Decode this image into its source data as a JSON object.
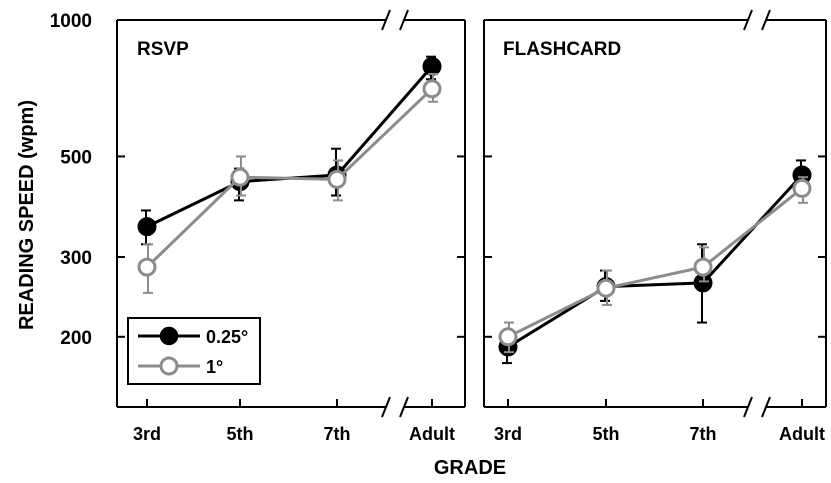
{
  "figure": {
    "ylabel": "READING SPEED (wpm)",
    "xlabel": "GRADE",
    "y_ticks": [
      200,
      300,
      500,
      1000
    ],
    "y_tick_labels": [
      "200",
      "300",
      "500",
      "1000"
    ],
    "y_scale": "log",
    "ylim": [
      140,
      1000
    ]
  },
  "legend": {
    "placement": "bottom-left of left panel",
    "entries": [
      {
        "label": "0.25°",
        "color": "#000000",
        "marker": "filled-circle"
      },
      {
        "label": "1°",
        "color": "#8c8c8c",
        "marker": "open-circle"
      }
    ]
  },
  "chart_data": [
    {
      "type": "line",
      "title": "RSVP",
      "categories": [
        "3rd",
        "5th",
        "7th",
        "Adult"
      ],
      "axis_break": "between 7th and Adult",
      "series": [
        {
          "name": "0.25°",
          "color": "#000000",
          "marker": "filled",
          "values": [
            350,
            440,
            455,
            790
          ],
          "err_low": [
            320,
            400,
            410,
            740
          ],
          "err_high": [
            380,
            470,
            520,
            830
          ]
        },
        {
          "name": "1°",
          "color": "#8c8c8c",
          "marker": "open",
          "values": [
            285,
            450,
            445,
            705
          ],
          "err_low": [
            250,
            410,
            400,
            660
          ],
          "err_high": [
            320,
            500,
            490,
            760
          ]
        }
      ]
    },
    {
      "type": "line",
      "title": "FLASHCARD",
      "categories": [
        "3rd",
        "5th",
        "7th",
        "Adult"
      ],
      "axis_break": "between 7th and Adult",
      "series": [
        {
          "name": "0.25°",
          "color": "#000000",
          "marker": "filled",
          "values": [
            190,
            258,
            263,
            455
          ],
          "err_low": [
            175,
            240,
            215,
            420
          ],
          "err_high": [
            205,
            280,
            320,
            490
          ]
        },
        {
          "name": "1°",
          "color": "#8c8c8c",
          "marker": "open",
          "values": [
            200,
            256,
            285,
            425
          ],
          "err_low": [
            185,
            235,
            265,
            395
          ],
          "err_high": [
            215,
            280,
            315,
            450
          ]
        }
      ]
    }
  ]
}
